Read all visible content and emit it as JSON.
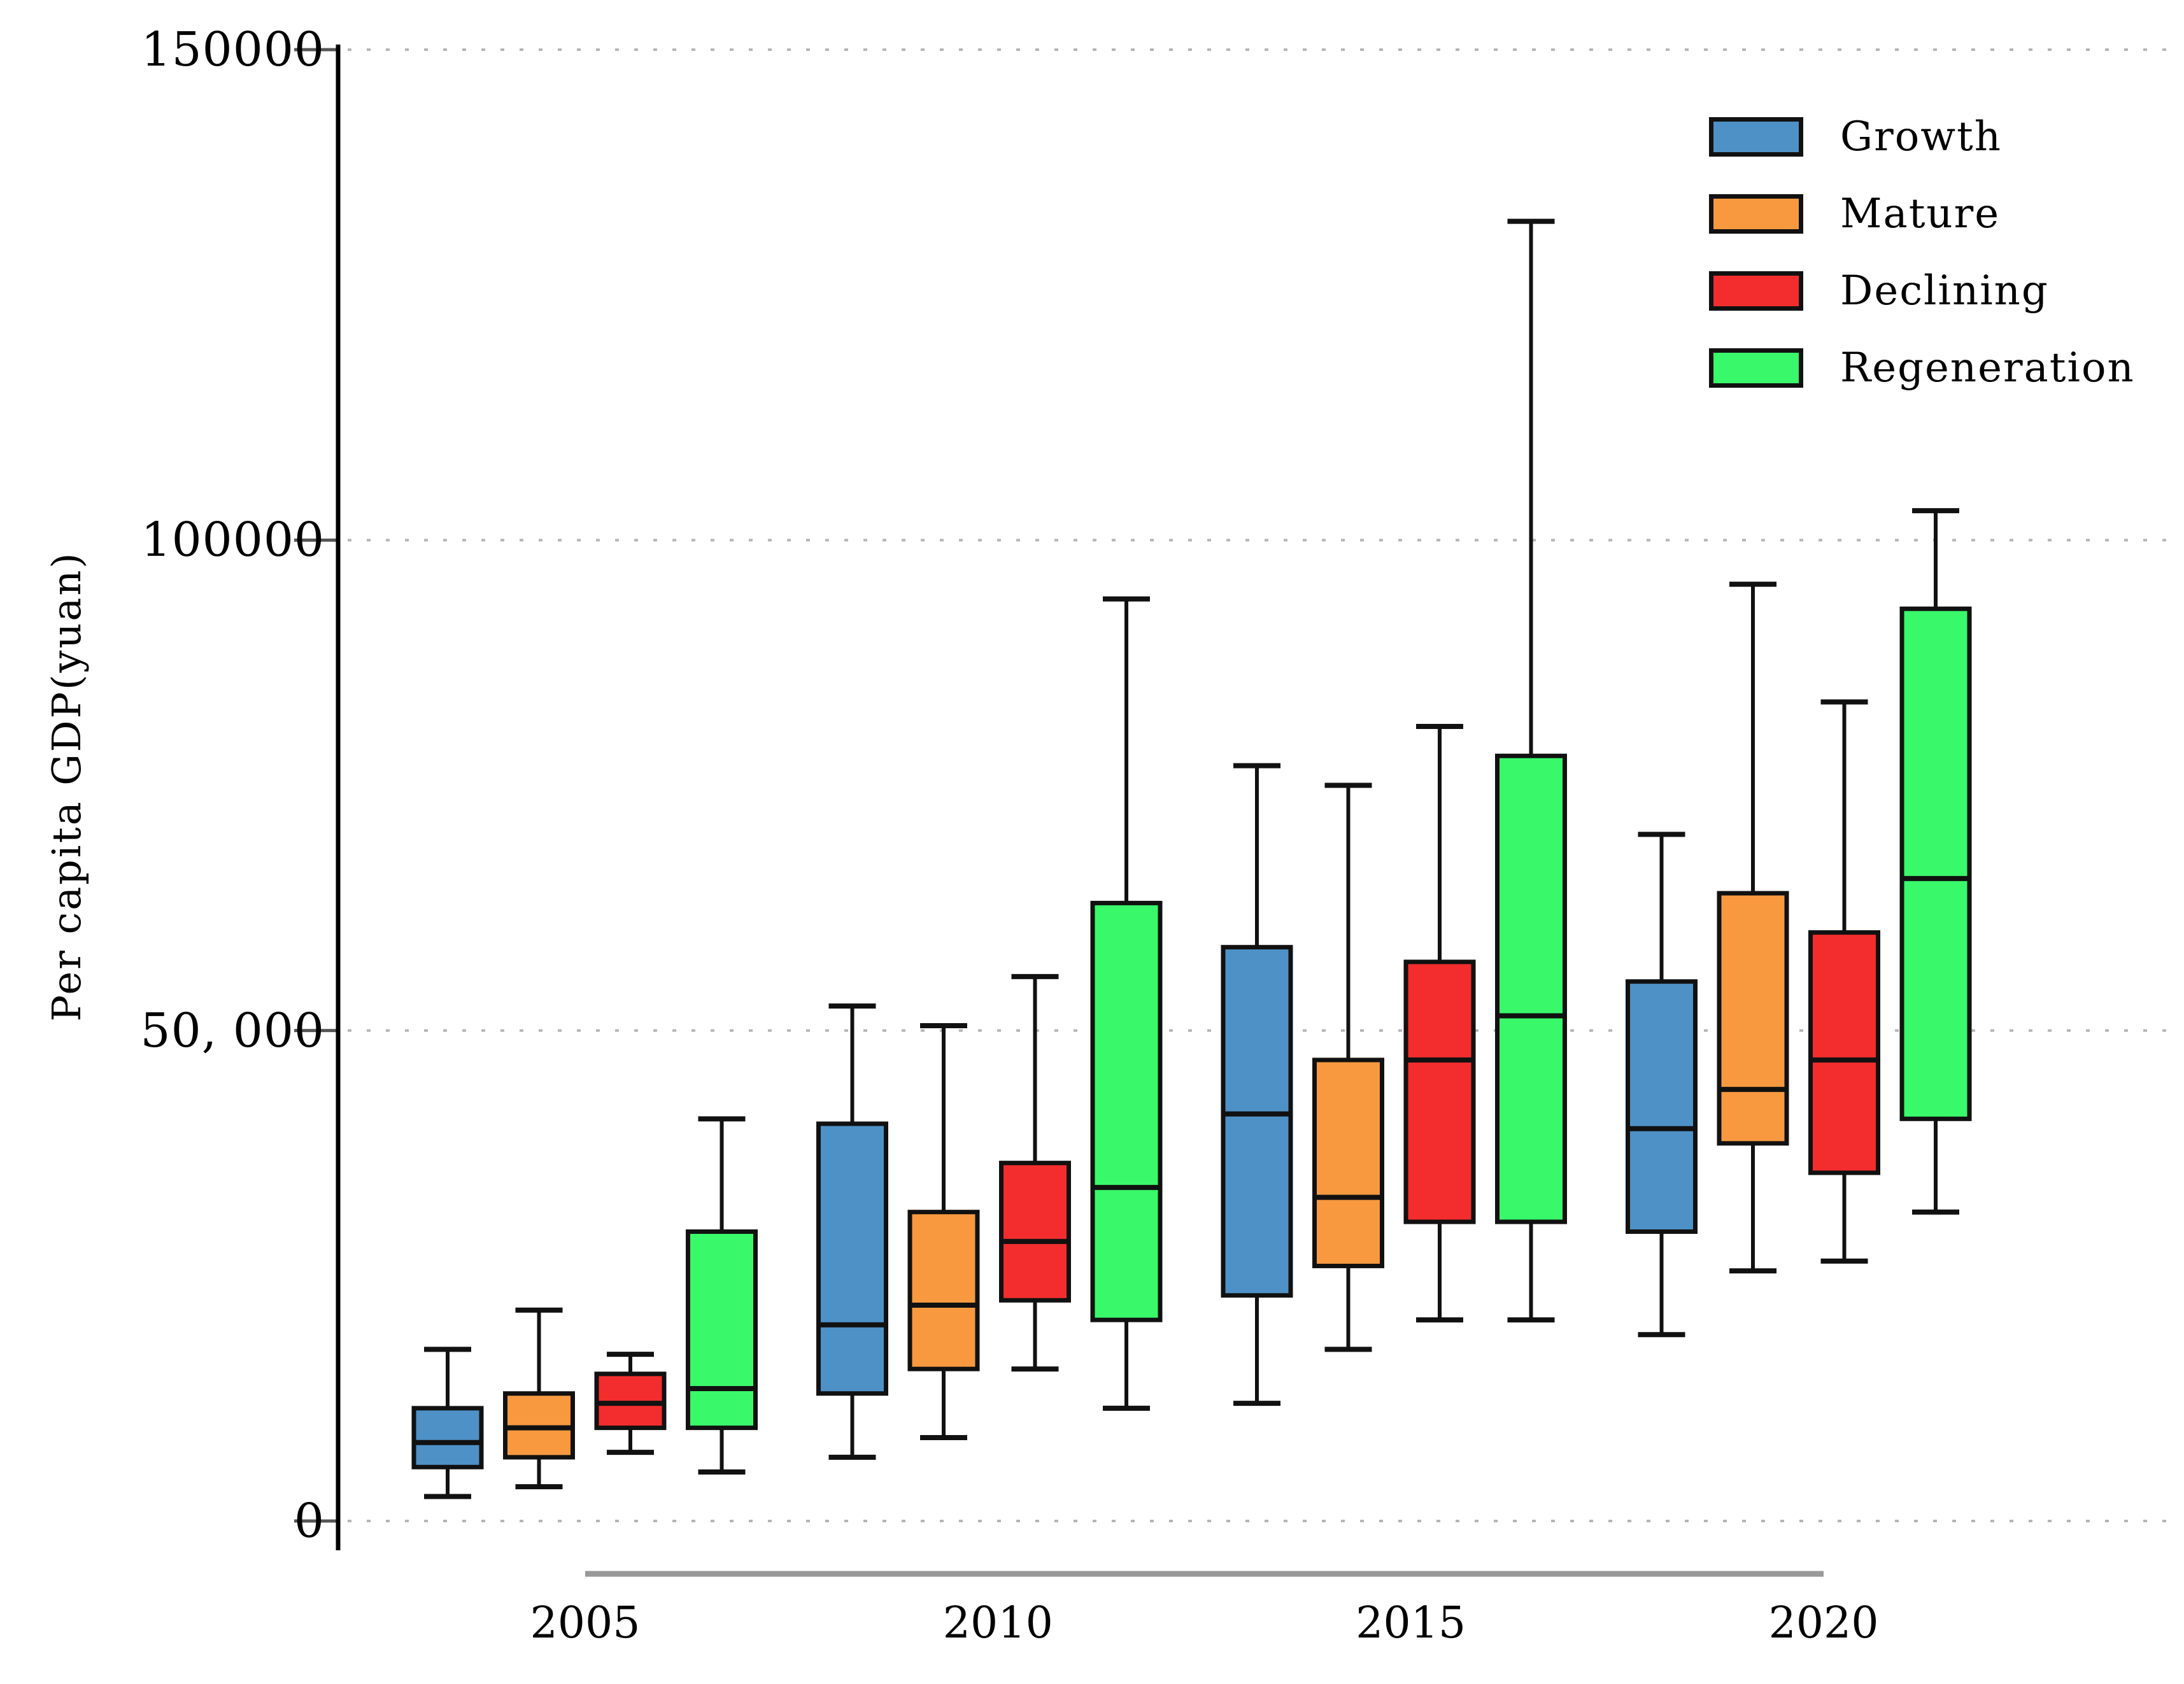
{
  "chart_data": {
    "type": "boxplot",
    "title": "",
    "xlabel": "",
    "ylabel": "Per capita GDP(yuan)",
    "categories": [
      "2005",
      "2010",
      "2015",
      "2020"
    ],
    "y_ticks": [
      {
        "value": 0,
        "label": "0"
      },
      {
        "value": 50000,
        "label": "50, 000"
      },
      {
        "value": 100000,
        "label": "100000"
      },
      {
        "value": 150000,
        "label": "150000"
      }
    ],
    "ylim": [
      0,
      150000
    ],
    "grid": "horizontal-dotted",
    "legend_position": "upper-right",
    "box_stats_order": [
      "min",
      "q1",
      "median",
      "q3",
      "max"
    ],
    "series": [
      {
        "name": "Growth",
        "color": "#4E91C6",
        "boxes": [
          [
            2500,
            5500,
            8000,
            11500,
            17500
          ],
          [
            6500,
            13000,
            20000,
            40500,
            52500
          ],
          [
            12000,
            23000,
            41500,
            58500,
            77000
          ],
          [
            19000,
            29500,
            40000,
            55000,
            70000
          ]
        ]
      },
      {
        "name": "Mature",
        "color": "#F89940",
        "boxes": [
          [
            3500,
            6500,
            9500,
            13000,
            21500
          ],
          [
            8500,
            15500,
            22000,
            31500,
            50500
          ],
          [
            17500,
            26000,
            33000,
            47000,
            75000
          ],
          [
            25500,
            38500,
            44000,
            64000,
            95500
          ]
        ]
      },
      {
        "name": "Declining",
        "color": "#F32D2D",
        "boxes": [
          [
            7000,
            9500,
            12000,
            15000,
            17000
          ],
          [
            15500,
            22500,
            28500,
            36500,
            55500
          ],
          [
            20500,
            30500,
            47000,
            57000,
            81000
          ],
          [
            26500,
            35500,
            47000,
            60000,
            83500
          ]
        ]
      },
      {
        "name": "Regeneration",
        "color": "#39F86A",
        "boxes": [
          [
            5000,
            9500,
            13500,
            29500,
            41000
          ],
          [
            11500,
            20500,
            34000,
            63000,
            94000
          ],
          [
            20500,
            30500,
            51500,
            78000,
            132500
          ],
          [
            31500,
            41000,
            65500,
            93000,
            103000
          ]
        ]
      }
    ],
    "styles": {
      "box_border_color": "#111111",
      "whisker_color": "#111111",
      "gridline_color": "#b5b5b5",
      "tick_color": "#555555",
      "axis_color": "#000000",
      "x_underline_color": "#999999"
    }
  }
}
